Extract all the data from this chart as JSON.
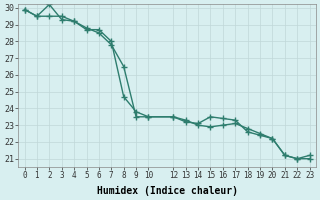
{
  "line1_x": [
    0,
    1,
    2,
    3,
    4,
    5,
    6,
    7,
    8,
    9,
    10,
    12,
    13,
    14,
    15,
    16,
    17,
    18,
    19,
    20,
    21,
    22,
    23
  ],
  "line1_y": [
    29.9,
    29.5,
    30.2,
    29.3,
    29.2,
    28.8,
    28.5,
    27.8,
    26.5,
    23.5,
    23.5,
    23.5,
    23.3,
    23.0,
    22.9,
    23.0,
    23.1,
    22.8,
    22.5,
    22.2,
    21.2,
    21.0,
    21.0
  ],
  "line2_x": [
    0,
    1,
    2,
    3,
    4,
    5,
    6,
    7,
    8,
    9,
    10,
    12,
    13,
    14,
    15,
    16,
    17,
    18,
    19,
    20,
    21,
    22,
    23
  ],
  "line2_y": [
    29.9,
    29.5,
    29.5,
    29.5,
    29.2,
    28.7,
    28.7,
    28.0,
    24.7,
    23.8,
    23.5,
    23.5,
    23.2,
    23.1,
    23.5,
    23.4,
    23.3,
    22.6,
    22.4,
    22.2,
    21.2,
    21.0,
    21.2
  ],
  "line_color": "#2e7d6e",
  "marker": "+",
  "markersize": 4,
  "linewidth": 1.0,
  "bg_color": "#d8eff0",
  "grid_color": "#c0d8d8",
  "xlabel": "Humidex (Indice chaleur)",
  "xlim": [
    -0.5,
    23.5
  ],
  "ylim_min": 20.5,
  "ylim_max": 30.2,
  "yticks": [
    21,
    22,
    23,
    24,
    25,
    26,
    27,
    28,
    29,
    30
  ],
  "xticks": [
    0,
    1,
    2,
    3,
    4,
    5,
    6,
    7,
    8,
    9,
    10,
    12,
    13,
    14,
    15,
    16,
    17,
    18,
    19,
    20,
    21,
    22,
    23
  ],
  "xtick_labels": [
    "0",
    "1",
    "2",
    "3",
    "4",
    "5",
    "6",
    "7",
    "8",
    "9",
    "10",
    "12",
    "13",
    "14",
    "15",
    "16",
    "17",
    "18",
    "19",
    "20",
    "21",
    "22",
    "23"
  ]
}
